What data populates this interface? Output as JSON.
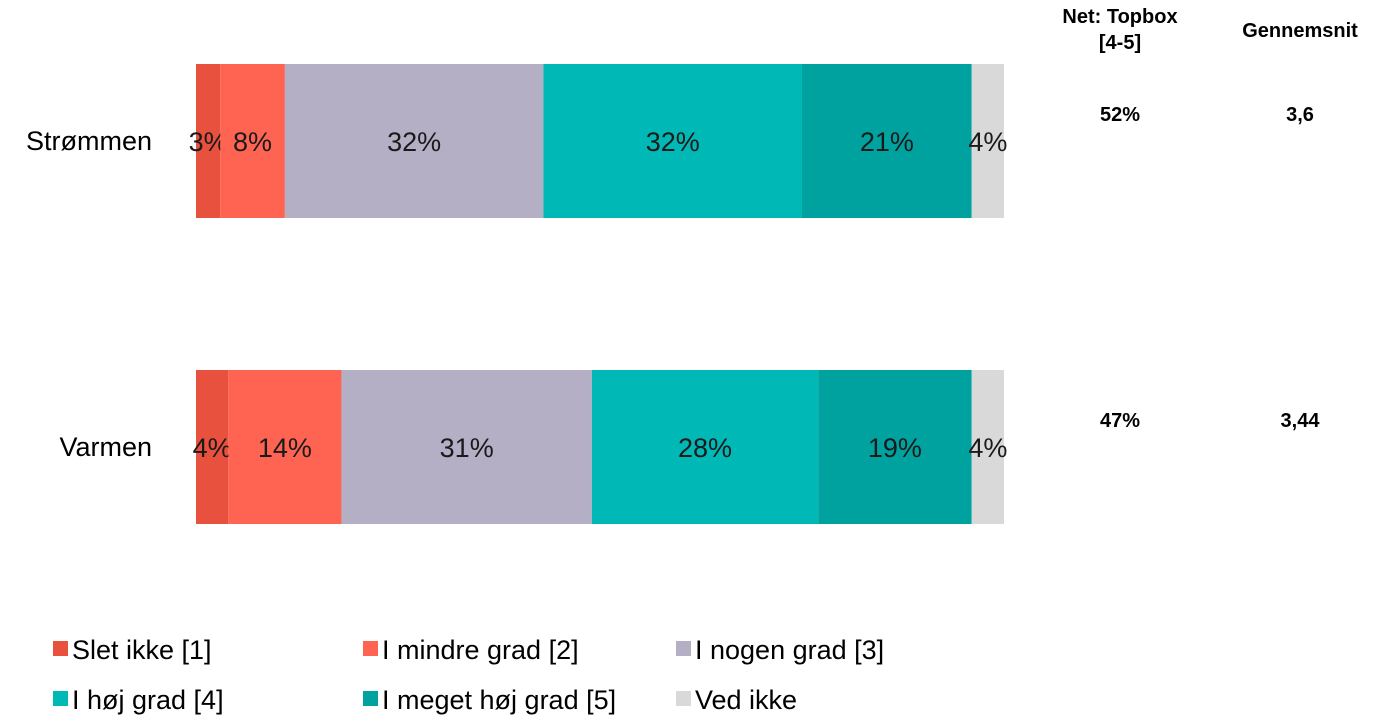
{
  "chart_data": {
    "type": "bar",
    "orientation": "horizontal",
    "stacked": "100%",
    "categories": [
      "Strømmen",
      "Varmen"
    ],
    "series": [
      {
        "name": "Slet ikke [1]",
        "color": "#E8513E",
        "values": [
          3,
          4
        ],
        "labels": [
          "3%",
          "4%"
        ]
      },
      {
        "name": "I mindre grad [2]",
        "color": "#FF6452",
        "values": [
          8,
          14
        ],
        "labels": [
          "8%",
          "14%"
        ]
      },
      {
        "name": "I nogen grad [3]",
        "color": "#B4AFC5",
        "values": [
          32,
          31
        ],
        "labels": [
          "32%",
          "31%"
        ]
      },
      {
        "name": "I høj grad [4]",
        "color": "#00B8B5",
        "values": [
          32,
          28
        ],
        "labels": [
          "32%",
          "28%"
        ]
      },
      {
        "name": "I meget høj grad [5]",
        "color": "#00A29F",
        "values": [
          21,
          19
        ],
        "labels": [
          "21%",
          "19%"
        ]
      },
      {
        "name": "Ved ikke",
        "color": "#D9D9D9",
        "values": [
          4,
          4
        ],
        "labels": [
          "4%",
          "4%"
        ]
      }
    ],
    "side_columns": [
      {
        "header_lines": [
          "Net: Topbox",
          "[4-5]"
        ],
        "values": [
          "52%",
          "47%"
        ]
      },
      {
        "header_lines": [
          "Gennemsnit"
        ],
        "values": [
          "3,6",
          "3,44"
        ]
      }
    ],
    "legend_position": "bottom",
    "grid": false
  }
}
